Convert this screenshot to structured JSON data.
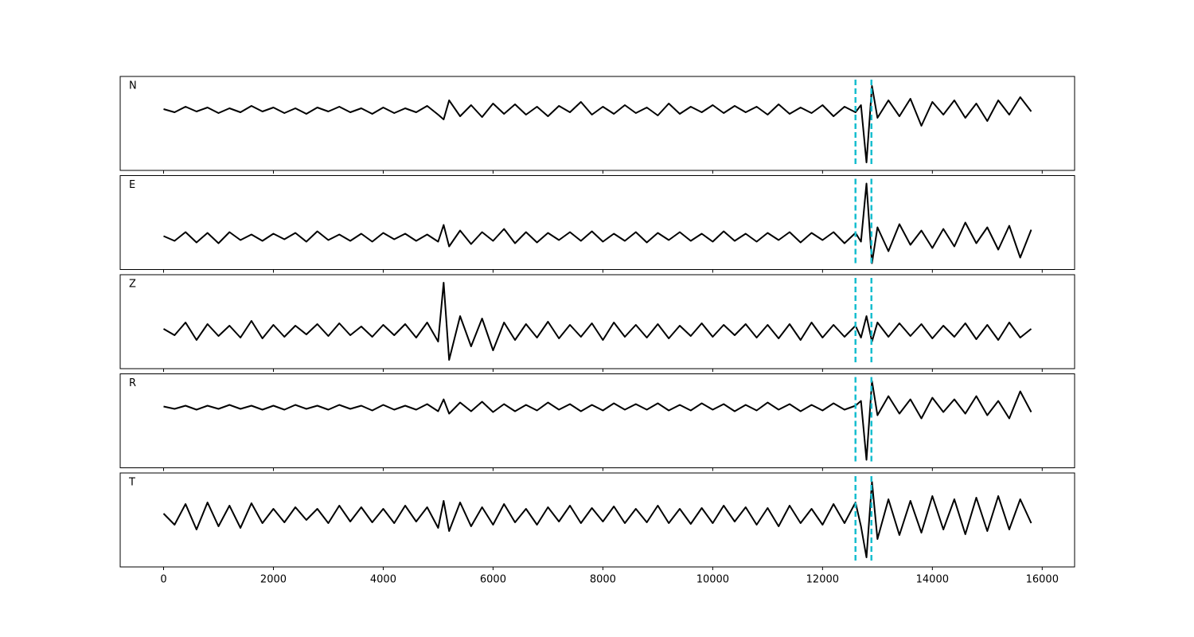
{
  "chart_data": {
    "type": "line",
    "x": [
      0,
      200,
      400,
      600,
      800,
      1000,
      1200,
      1400,
      1600,
      1800,
      2000,
      2200,
      2400,
      2600,
      2800,
      3000,
      3200,
      3400,
      3600,
      3800,
      4000,
      4200,
      4400,
      4600,
      4800,
      5000,
      5100,
      5200,
      5400,
      5600,
      5800,
      6000,
      6200,
      6400,
      6600,
      6800,
      7000,
      7200,
      7400,
      7600,
      7800,
      8000,
      8200,
      8400,
      8600,
      8800,
      9000,
      9200,
      9400,
      9600,
      9800,
      10000,
      10200,
      10400,
      10600,
      10800,
      11000,
      11200,
      11400,
      11600,
      11800,
      12000,
      12200,
      12400,
      12600,
      12700,
      12800,
      12900,
      13000,
      13200,
      13400,
      13600,
      13800,
      14000,
      14200,
      14400,
      14600,
      14800,
      15000,
      15200,
      15400,
      15600,
      15800
    ],
    "series": [
      {
        "name": "N",
        "color": "#000000",
        "ylim": [
          -76,
          42
        ],
        "values": [
          1,
          -3,
          4,
          -2,
          3,
          -4,
          2,
          -3,
          5,
          -2,
          3,
          -4,
          2,
          -5,
          3,
          -2,
          4,
          -3,
          2,
          -5,
          3,
          -4,
          2,
          -3,
          5,
          -6,
          -12,
          12,
          -8,
          6,
          -9,
          8,
          -5,
          7,
          -6,
          4,
          -8,
          5,
          -3,
          10,
          -6,
          4,
          -5,
          6,
          -4,
          3,
          -7,
          8,
          -5,
          4,
          -3,
          6,
          -4,
          5,
          -3,
          4,
          -6,
          7,
          -5,
          3,
          -4,
          6,
          -8,
          4,
          -3,
          6,
          -66,
          30,
          -10,
          12,
          -8,
          14,
          -20,
          10,
          -6,
          12,
          -10,
          8,
          -14,
          12,
          -6,
          16,
          -2
        ]
      },
      {
        "name": "E",
        "color": "#000000",
        "ylim": [
          -41,
          77
        ],
        "values": [
          1,
          -5,
          6,
          -7,
          5,
          -8,
          6,
          -4,
          3,
          -5,
          4,
          -3,
          5,
          -6,
          7,
          -4,
          3,
          -5,
          4,
          -6,
          5,
          -3,
          4,
          -5,
          3,
          -6,
          15,
          -12,
          8,
          -9,
          6,
          -5,
          10,
          -8,
          6,
          -7,
          5,
          -4,
          6,
          -5,
          7,
          -6,
          4,
          -5,
          6,
          -7,
          5,
          -4,
          6,
          -5,
          4,
          -6,
          7,
          -5,
          4,
          -6,
          5,
          -4,
          6,
          -7,
          5,
          -4,
          6,
          -8,
          5,
          -6,
          67,
          -33,
          12,
          -18,
          16,
          -10,
          8,
          -14,
          10,
          -12,
          18,
          -8,
          12,
          -16,
          14,
          -26,
          9
        ]
      },
      {
        "name": "Z",
        "color": "#000000",
        "ylim": [
          -48,
          70
        ],
        "values": [
          2,
          -6,
          10,
          -12,
          8,
          -7,
          6,
          -9,
          12,
          -10,
          7,
          -8,
          6,
          -5,
          8,
          -7,
          9,
          -6,
          5,
          -8,
          7,
          -6,
          8,
          -9,
          10,
          -14,
          60,
          -37,
          18,
          -20,
          15,
          -25,
          10,
          -12,
          8,
          -9,
          11,
          -10,
          7,
          -8,
          9,
          -12,
          10,
          -8,
          7,
          -9,
          8,
          -10,
          6,
          -7,
          9,
          -8,
          7,
          -6,
          8,
          -9,
          7,
          -10,
          8,
          -12,
          10,
          -9,
          7,
          -8,
          6,
          -9,
          18,
          -14,
          10,
          -8,
          9,
          -7,
          8,
          -10,
          6,
          -8,
          9,
          -11,
          7,
          -12,
          10,
          -9,
          2
        ]
      },
      {
        "name": "R",
        "color": "#000000",
        "ylim": [
          -76,
          42
        ],
        "values": [
          1,
          -2,
          2,
          -3,
          2,
          -2,
          3,
          -2,
          2,
          -3,
          2,
          -3,
          3,
          -2,
          2,
          -3,
          3,
          -2,
          2,
          -4,
          3,
          -3,
          2,
          -3,
          4,
          -5,
          10,
          -8,
          6,
          -5,
          7,
          -6,
          4,
          -5,
          3,
          -4,
          6,
          -3,
          4,
          -5,
          3,
          -4,
          5,
          -3,
          4,
          -3,
          5,
          -4,
          3,
          -4,
          5,
          -3,
          4,
          -5,
          3,
          -4,
          6,
          -3,
          4,
          -5,
          3,
          -4,
          5,
          -3,
          2,
          8,
          -66,
          33,
          -10,
          14,
          -8,
          10,
          -14,
          12,
          -6,
          10,
          -8,
          14,
          -10,
          8,
          -14,
          20,
          -6
        ]
      },
      {
        "name": "T",
        "color": "#000000",
        "ylim": [
          -65,
          53
        ],
        "values": [
          2,
          -12,
          14,
          -18,
          16,
          -14,
          12,
          -16,
          15,
          -10,
          8,
          -9,
          10,
          -6,
          8,
          -10,
          12,
          -8,
          10,
          -9,
          8,
          -10,
          12,
          -8,
          10,
          -16,
          18,
          -20,
          16,
          -14,
          10,
          -12,
          14,
          -9,
          8,
          -12,
          10,
          -8,
          12,
          -10,
          9,
          -8,
          11,
          -10,
          8,
          -9,
          12,
          -10,
          8,
          -11,
          9,
          -10,
          12,
          -8,
          10,
          -12,
          9,
          -14,
          12,
          -10,
          8,
          -12,
          14,
          -10,
          16,
          -14,
          -53,
          42,
          -30,
          20,
          -25,
          18,
          -22,
          24,
          -18,
          20,
          -24,
          22,
          -20,
          24,
          -18,
          20,
          -10
        ]
      }
    ],
    "vlines": [
      12600,
      12890
    ],
    "vline_color": "#17becf",
    "xlim": [
      -790,
      16590
    ],
    "xticks": [
      0,
      2000,
      4000,
      6000,
      8000,
      10000,
      12000,
      14000,
      16000
    ]
  }
}
